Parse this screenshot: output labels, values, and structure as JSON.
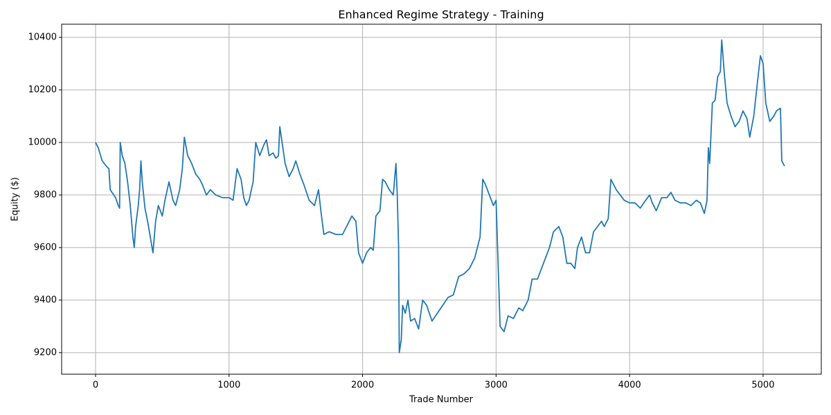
{
  "chart_data": {
    "type": "line",
    "title": "Enhanced Regime Strategy - Training",
    "xlabel": "Trade Number",
    "ylabel": "Equity ($)",
    "x": [
      0,
      20,
      50,
      80,
      100,
      110,
      150,
      170,
      180,
      185,
      200,
      220,
      240,
      260,
      280,
      290,
      300,
      320,
      330,
      340,
      350,
      370,
      390,
      410,
      420,
      430,
      450,
      470,
      500,
      520,
      550,
      580,
      600,
      630,
      650,
      665,
      690,
      720,
      750,
      780,
      800,
      830,
      860,
      900,
      950,
      1000,
      1030,
      1060,
      1090,
      1110,
      1130,
      1150,
      1180,
      1200,
      1230,
      1260,
      1280,
      1300,
      1330,
      1350,
      1370,
      1380,
      1400,
      1420,
      1450,
      1480,
      1500,
      1530,
      1560,
      1600,
      1640,
      1670,
      1690,
      1710,
      1750,
      1800,
      1850,
      1880,
      1900,
      1920,
      1950,
      1970,
      2000,
      2030,
      2060,
      2080,
      2100,
      2130,
      2150,
      2170,
      2200,
      2230,
      2250,
      2260,
      2270,
      2275,
      2290,
      2300,
      2320,
      2340,
      2360,
      2390,
      2420,
      2450,
      2480,
      2520,
      2560,
      2600,
      2640,
      2680,
      2720,
      2760,
      2800,
      2840,
      2880,
      2900,
      2920,
      2950,
      2980,
      3000,
      3010,
      3030,
      3060,
      3090,
      3130,
      3170,
      3200,
      3240,
      3270,
      3310,
      3340,
      3370,
      3400,
      3430,
      3470,
      3500,
      3530,
      3560,
      3590,
      3610,
      3640,
      3670,
      3700,
      3730,
      3760,
      3790,
      3810,
      3840,
      3860,
      3880,
      3900,
      3930,
      3960,
      4000,
      4040,
      4080,
      4120,
      4150,
      4170,
      4200,
      4240,
      4280,
      4310,
      4340,
      4380,
      4420,
      4460,
      4500,
      4530,
      4560,
      4580,
      4590,
      4600,
      4620,
      4640,
      4660,
      4680,
      4690,
      4710,
      4730,
      4760,
      4790,
      4820,
      4850,
      4880,
      4900,
      4930,
      4960,
      4980,
      5000,
      5020,
      5050,
      5080,
      5100,
      5130,
      5140,
      5160
    ],
    "series": [
      {
        "name": "Equity",
        "color": "#1f77b4",
        "values": [
          10000,
          9980,
          9930,
          9910,
          9900,
          9820,
          9790,
          9760,
          9750,
          10000,
          9950,
          9920,
          9850,
          9760,
          9640,
          9600,
          9680,
          9760,
          9820,
          9930,
          9850,
          9750,
          9700,
          9640,
          9610,
          9580,
          9700,
          9760,
          9720,
          9780,
          9850,
          9780,
          9760,
          9820,
          9900,
          10020,
          9950,
          9920,
          9880,
          9860,
          9840,
          9800,
          9820,
          9800,
          9790,
          9790,
          9780,
          9900,
          9860,
          9790,
          9760,
          9780,
          9850,
          10000,
          9950,
          9990,
          10010,
          9950,
          9960,
          9940,
          9950,
          10060,
          9990,
          9920,
          9870,
          9900,
          9930,
          9880,
          9840,
          9780,
          9760,
          9820,
          9730,
          9650,
          9660,
          9650,
          9650,
          9680,
          9700,
          9720,
          9700,
          9580,
          9540,
          9580,
          9600,
          9590,
          9720,
          9740,
          9860,
          9850,
          9820,
          9800,
          9920,
          9800,
          9600,
          9200,
          9250,
          9380,
          9350,
          9400,
          9320,
          9330,
          9290,
          9400,
          9380,
          9320,
          9350,
          9380,
          9410,
          9420,
          9490,
          9500,
          9520,
          9560,
          9640,
          9860,
          9840,
          9800,
          9760,
          9780,
          9620,
          9300,
          9280,
          9340,
          9330,
          9370,
          9360,
          9400,
          9480,
          9480,
          9520,
          9560,
          9600,
          9660,
          9680,
          9640,
          9540,
          9540,
          9520,
          9600,
          9640,
          9580,
          9580,
          9660,
          9680,
          9700,
          9680,
          9710,
          9860,
          9840,
          9820,
          9800,
          9780,
          9770,
          9770,
          9750,
          9780,
          9800,
          9770,
          9740,
          9790,
          9790,
          9810,
          9780,
          9770,
          9770,
          9760,
          9780,
          9770,
          9730,
          9780,
          9980,
          9920,
          10150,
          10160,
          10250,
          10270,
          10390,
          10260,
          10150,
          10100,
          10060,
          10080,
          10120,
          10090,
          10020,
          10100,
          10240,
          10330,
          10300,
          10150,
          10080,
          10100,
          10120,
          10130,
          9930,
          9910
        ]
      }
    ],
    "xlim": [
      -254,
      5436
    ],
    "ylim": [
      9118,
      10450
    ],
    "xticks": [
      0,
      1000,
      2000,
      3000,
      4000,
      5000
    ],
    "yticks": [
      9200,
      9400,
      9600,
      9800,
      10000,
      10200,
      10400
    ],
    "grid": true
  }
}
